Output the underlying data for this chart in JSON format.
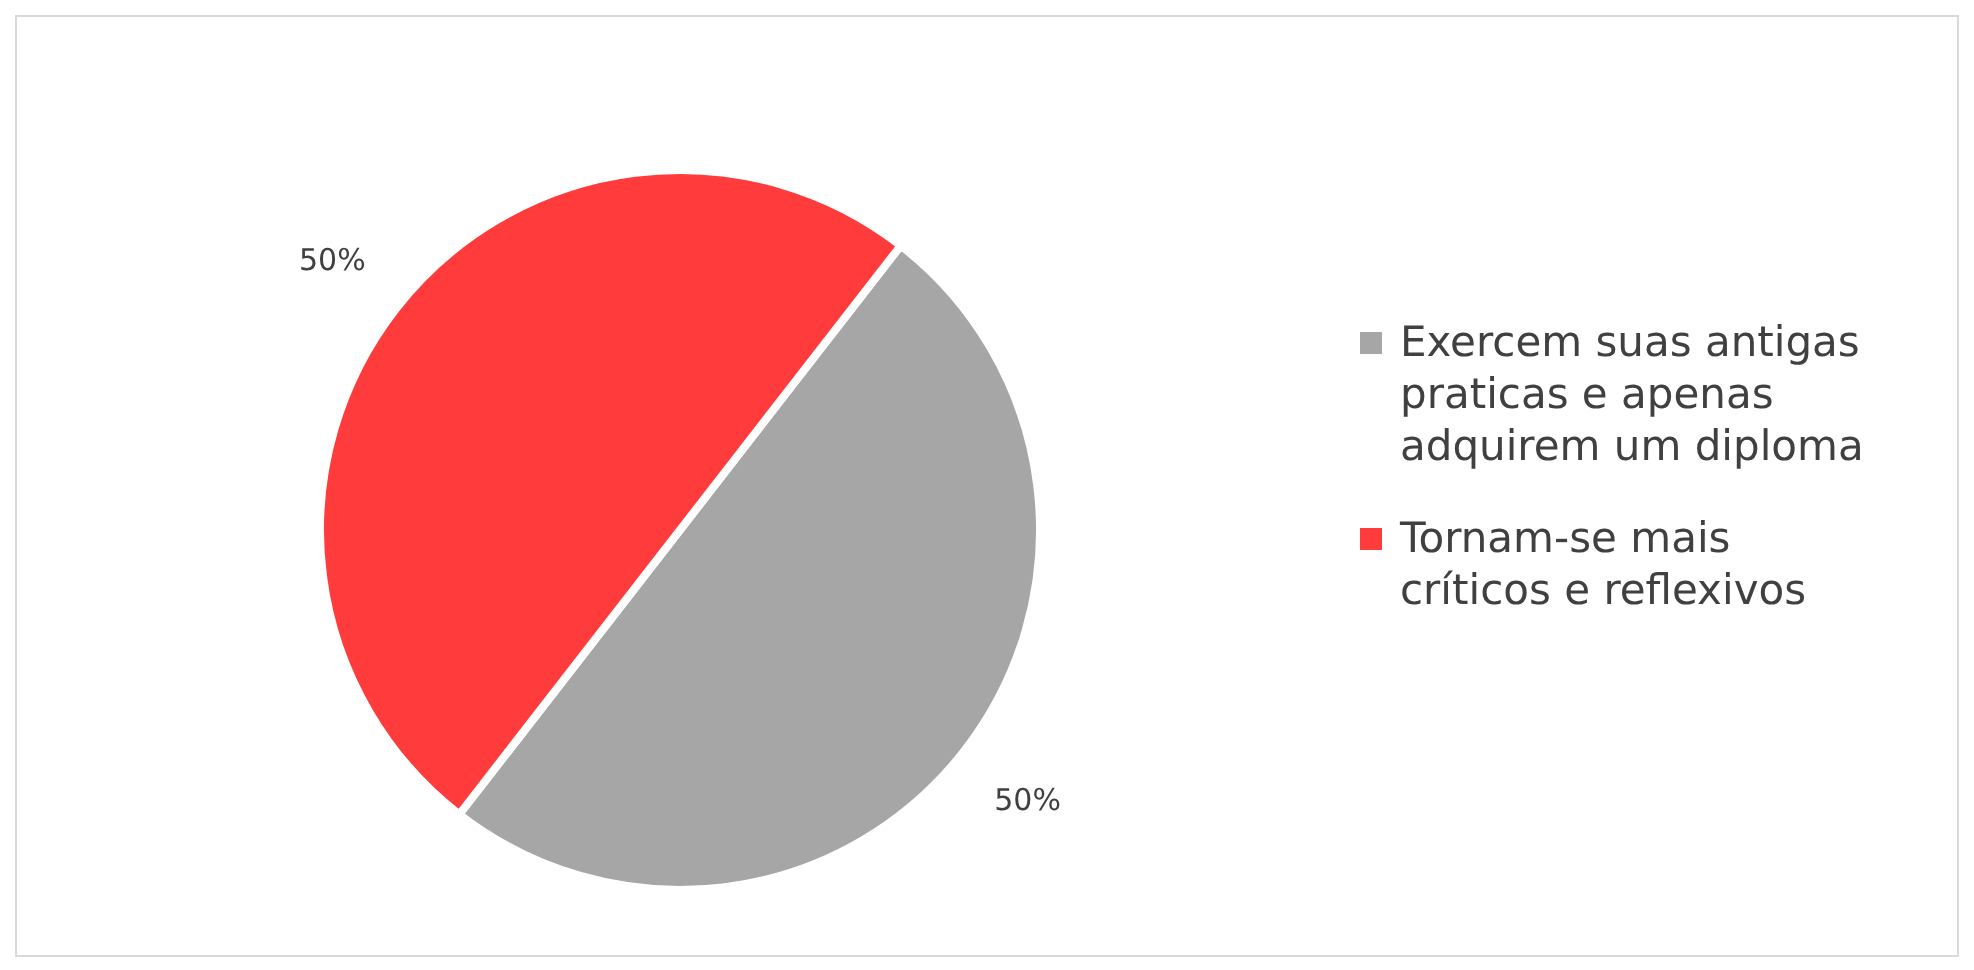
{
  "chart_data": {
    "type": "pie",
    "categories": [
      "Exercem suas antigas praticas e apenas adquirem um diploma",
      "Tornam-se mais críticos e reflexivos"
    ],
    "values": [
      50,
      50
    ],
    "colors": [
      "#a6a6a6",
      "#ff3b3b"
    ],
    "value_labels": [
      "50%",
      "50%"
    ],
    "legend": "right"
  }
}
